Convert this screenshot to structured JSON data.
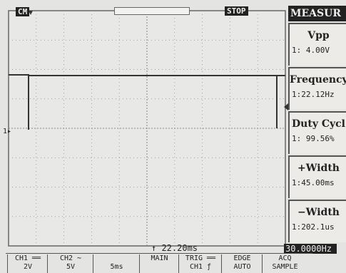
{
  "top_bar": {
    "status_left": "CM",
    "status_right": "STOP"
  },
  "channel_marker": "1▸",
  "measure_panel": {
    "title": "MEASUR",
    "items": [
      {
        "label": "Vpp",
        "value": "1:  4.00V"
      },
      {
        "label": "Frequency",
        "value": "1:22.12Hz"
      },
      {
        "label": "Duty Cycl",
        "value": "1: 99.56%"
      },
      {
        "label": "+Width",
        "value": "1:45.00ms"
      },
      {
        "label": "−Width",
        "value": "1:202.1us"
      }
    ]
  },
  "bottom": {
    "time_offset": "22.20ms",
    "trigger_frequency": "30.0000Hz",
    "menu": [
      {
        "lines": [
          "CH1 ══",
          "2V"
        ]
      },
      {
        "lines": [
          "CH2 ∼",
          "5V"
        ]
      },
      {
        "lines": [
          "",
          "5ms"
        ]
      },
      {
        "lines": [
          "MAIN",
          ""
        ]
      },
      {
        "lines": [
          "TRIG ══",
          "CH1 ƒ"
        ]
      },
      {
        "lines": [
          "EDGE",
          "AUTO"
        ]
      },
      {
        "lines": [
          "ACQ",
          "SAMPLE"
        ]
      }
    ]
  }
}
